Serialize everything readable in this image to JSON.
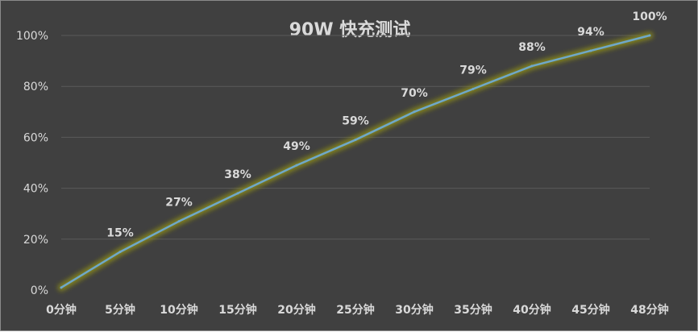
{
  "chart_data": {
    "type": "line",
    "title": "90W 快充测试",
    "categories": [
      "0分钟",
      "5分钟",
      "10分钟",
      "15分钟",
      "20分钟",
      "25分钟",
      "30分钟",
      "35分钟",
      "40分钟",
      "45分钟",
      "48分钟"
    ],
    "series": [
      {
        "values": [
          1,
          15,
          27,
          38,
          49,
          59,
          70,
          79,
          88,
          94,
          100
        ],
        "data_labels": [
          "",
          "15%",
          "27%",
          "38%",
          "49%",
          "59%",
          "70%",
          "79%",
          "88%",
          "94%",
          "100%"
        ],
        "color": "#6fa8c9",
        "glow_color": "#8a8a1a"
      }
    ],
    "yticks": [
      "0%",
      "20%",
      "40%",
      "60%",
      "80%",
      "100%"
    ],
    "ylim": [
      0,
      100
    ],
    "grid": true,
    "legend": "none",
    "background": "#404040"
  }
}
